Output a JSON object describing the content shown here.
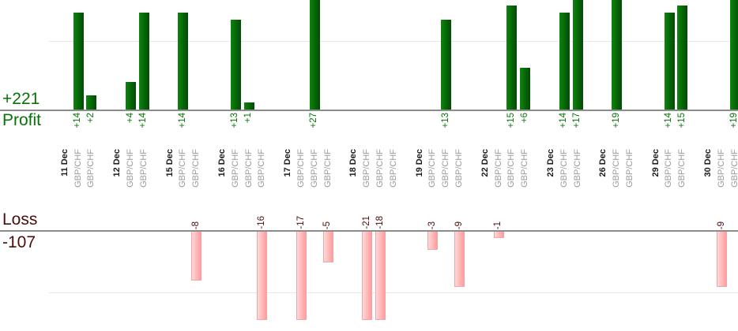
{
  "colors": {
    "profit_text": "#077307",
    "loss_text": "#4d0c0c",
    "profit_bar_light": "#0d850d",
    "profit_bar_mid": "#076b07",
    "profit_bar_dark": "#05490a",
    "loss_bar_light": "#ffd8d8",
    "loss_bar_dark": "#ff9c9c",
    "loss_bar_border": "#f3a4a4",
    "axis_line": "#8c8c8c",
    "gridline": "#e8e8e8",
    "date_text": "#1c1c1c",
    "instrument_text": "#9b9b9b"
  },
  "chart_data": {
    "type": "bar",
    "title": "",
    "instrument": "GBP/CHF",
    "profit_panel": {
      "axis_label": "Profit",
      "total": 221,
      "total_label": "+221",
      "baseline": 0,
      "clipped_above": 16
    },
    "loss_panel": {
      "axis_label": "Loss",
      "total": -107,
      "total_label": "-107",
      "baseline": 0,
      "clipped_below": -15
    },
    "groups": [
      {
        "date": "11 Dec",
        "trades": [
          {
            "value": 14,
            "label": "+14"
          },
          {
            "value": 2,
            "label": "+2"
          }
        ]
      },
      {
        "date": "12 Dec",
        "trades": [
          {
            "value": 4,
            "label": "+4"
          },
          {
            "value": 14,
            "label": "+14"
          }
        ]
      },
      {
        "date": "15 Dec",
        "trades": [
          {
            "value": 14,
            "label": "+14"
          },
          {
            "value": -8,
            "label": "-8"
          }
        ]
      },
      {
        "date": "16 Dec",
        "trades": [
          {
            "value": 13,
            "label": "+13"
          },
          {
            "value": 1,
            "label": "+1"
          },
          {
            "value": -16,
            "label": "-16"
          }
        ]
      },
      {
        "date": "17 Dec",
        "trades": [
          {
            "value": -17,
            "label": "-17"
          },
          {
            "value": 27,
            "label": "+27"
          },
          {
            "value": -5,
            "label": "-5"
          }
        ]
      },
      {
        "date": "18 Dec",
        "trades": [
          {
            "value": -21,
            "label": "-21"
          },
          {
            "value": -18,
            "label": "-18"
          },
          {
            "value": 0,
            "label": ""
          }
        ]
      },
      {
        "date": "19 Dec",
        "trades": [
          {
            "value": -3,
            "label": "-3"
          },
          {
            "value": 13,
            "label": "+13"
          },
          {
            "value": -9,
            "label": "-9"
          }
        ]
      },
      {
        "date": "22 Dec",
        "trades": [
          {
            "value": -1,
            "label": "-1"
          },
          {
            "value": 15,
            "label": "+15"
          },
          {
            "value": 6,
            "label": "+6"
          }
        ]
      },
      {
        "date": "23 Dec",
        "trades": [
          {
            "value": 14,
            "label": "+14"
          },
          {
            "value": 17,
            "label": "+17"
          }
        ]
      },
      {
        "date": "26 Dec",
        "trades": [
          {
            "value": 19,
            "label": "+19"
          },
          {
            "value": 0,
            "label": ""
          }
        ]
      },
      {
        "date": "29 Dec",
        "trades": [
          {
            "value": 14,
            "label": "+14"
          },
          {
            "value": 15,
            "label": "+15"
          }
        ]
      },
      {
        "date": "30 Dec",
        "trades": [
          {
            "value": -9,
            "label": "-9"
          },
          {
            "value": 19,
            "label": "+19"
          }
        ]
      }
    ]
  }
}
